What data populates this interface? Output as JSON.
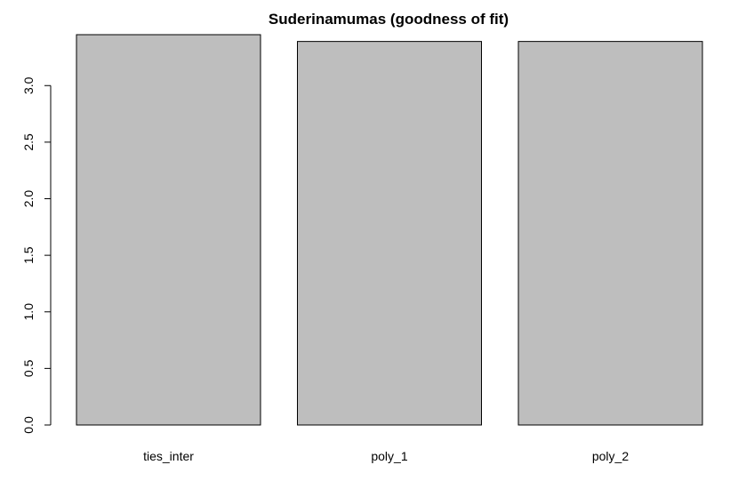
{
  "chart_data": {
    "type": "bar",
    "title": "Suderinamumas (goodness of fit)",
    "categories": [
      "ties_inter",
      "poly_1",
      "poly_2"
    ],
    "values": [
      3.45,
      3.39,
      3.39
    ],
    "ylim": [
      0,
      3.45
    ],
    "yticks": [
      0,
      0.5,
      1,
      1.5,
      2,
      2.5,
      3
    ],
    "ytick_labels": [
      "0.0",
      "0.5",
      "1.0",
      "1.5",
      "2.0",
      "2.5",
      "3.0"
    ],
    "xlabel": "",
    "ylabel": "",
    "grid": false,
    "colors": {
      "bar_fill": "#bebebe",
      "bar_stroke": "#000000"
    }
  }
}
